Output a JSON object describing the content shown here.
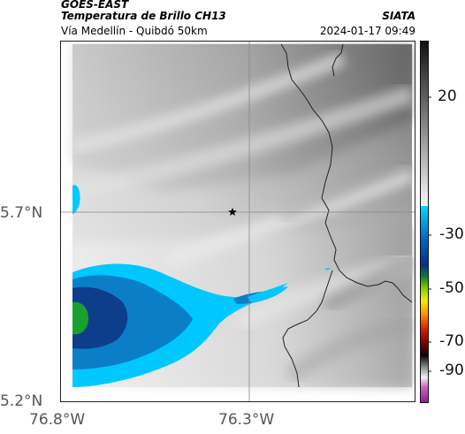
{
  "header": {
    "satellite": "GOES-EAST",
    "product": "Temperatura de Brillo CH13",
    "organization": "SIATA",
    "region": "Vía Medellín - Quibdó 50km",
    "datetime": "2024-01-17 09:49"
  },
  "map": {
    "lat_ticks": [
      "5.7°N",
      "5.2°N"
    ],
    "lon_ticks": [
      "76.8°W",
      "76.3°W"
    ],
    "marker_icon": "star-icon"
  },
  "colorbar": {
    "ticks": [
      "20",
      "-30",
      "-50",
      "-70",
      "-90"
    ]
  }
}
